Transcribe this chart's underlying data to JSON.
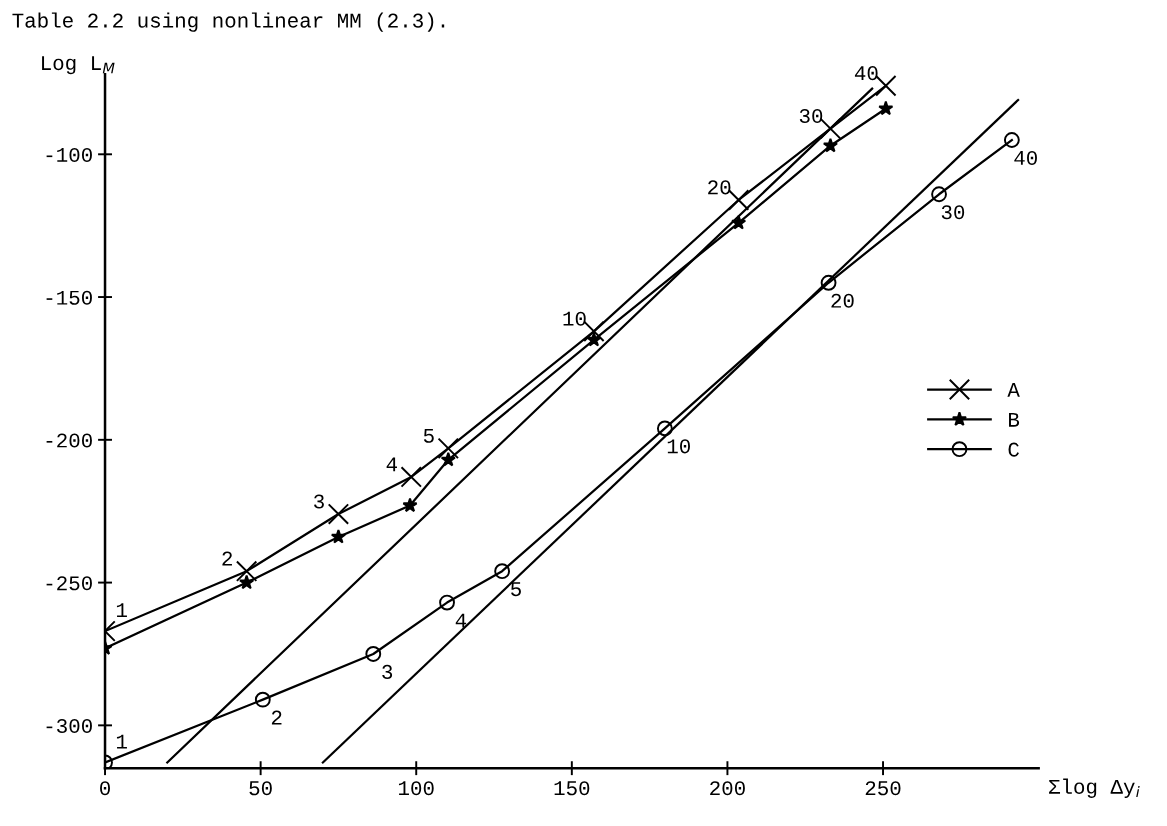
{
  "chart_data": {
    "type": "line",
    "title": "Table 2.2 using nonlinear MM (2.3).",
    "ylabel": "Log L$_{M}$",
    "xlabel": "Σlog Δy$_{i}$",
    "xlim": [
      0,
      300
    ],
    "ylim": [
      -315,
      -72
    ],
    "xticks": [
      0,
      50,
      100,
      150,
      200,
      250
    ],
    "yticks": [
      -100,
      -150,
      -200,
      -250,
      -300
    ],
    "grid": false,
    "legend": "center right",
    "line_style": "solid",
    "series": [
      {
        "name": "A",
        "color": "#000000",
        "marker": "cross",
        "x": [
          0,
          45.5,
          75,
          98.4,
          110.3,
          157.1,
          203.6,
          233.1,
          250.9
        ],
        "values": [
          -267,
          -246,
          -226,
          -213,
          -203,
          -162,
          -116,
          -91,
          -76
        ]
      },
      {
        "name": "B",
        "color": "#000000",
        "marker": "star",
        "x": [
          0,
          45.5,
          75,
          98,
          110.3,
          157.1,
          203.6,
          233.1,
          250.9
        ],
        "values": [
          -273,
          -250,
          -234,
          -223,
          -207,
          -165,
          -124,
          -97,
          -84
        ]
      },
      {
        "name": "C",
        "color": "#000000",
        "marker": "circle",
        "x": [
          0,
          50.7,
          86.2,
          109.9,
          127.6,
          179.9,
          232.5,
          268,
          291.4
        ],
        "values": [
          -313,
          -291,
          -275,
          -257,
          -246,
          -196,
          -145,
          -114,
          -95
        ]
      },
      {
        "color": "#000000",
        "marker": "none",
        "x": [
          20,
          246.5
        ],
        "values": [
          -313,
          -77
        ]
      },
      {
        "color": "#000000",
        "marker": "none",
        "x": [
          70,
          293.4
        ],
        "values": [
          -313,
          -81
        ]
      }
    ],
    "annotations": [
      {
        "text": "1",
        "x": 0,
        "y": -267
      },
      {
        "text": "2",
        "x": 45.5,
        "y": -246
      },
      {
        "text": "3",
        "x": 75,
        "y": -226
      },
      {
        "text": "4",
        "x": 98.4,
        "y": -213
      },
      {
        "text": "5",
        "x": 110.3,
        "y": -203
      },
      {
        "text": "10",
        "x": 157.1,
        "y": -162
      },
      {
        "text": "20",
        "x": 203.6,
        "y": -116
      },
      {
        "text": "30",
        "x": 233.1,
        "y": -91
      },
      {
        "text": "40",
        "x": 250.9,
        "y": -76
      },
      {
        "text": "1",
        "x": 0,
        "y": -313
      },
      {
        "text": "2",
        "x": 50.7,
        "y": -291
      },
      {
        "text": "3",
        "x": 86.2,
        "y": -275
      },
      {
        "text": "4",
        "x": 109.9,
        "y": -257
      },
      {
        "text": "5",
        "x": 127.6,
        "y": -246
      },
      {
        "text": "10",
        "x": 179.9,
        "y": -196
      },
      {
        "text": "20",
        "x": 232.5,
        "y": -145
      },
      {
        "text": "30",
        "x": 268,
        "y": -114
      },
      {
        "text": "40",
        "x": 291.4,
        "y": -95
      }
    ]
  }
}
